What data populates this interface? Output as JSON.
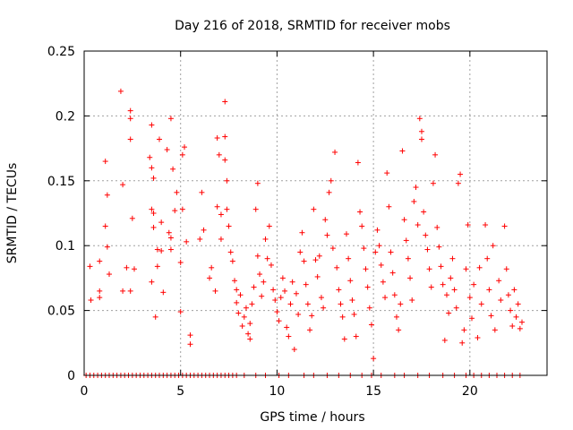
{
  "chart_data": {
    "type": "scatter",
    "title": "Day 216 of 2018, SRMTID for receiver mobs",
    "xlabel": "GPS time / hours",
    "ylabel": "SRMTID / TECUs",
    "xlim": [
      0,
      24
    ],
    "ylim": [
      0,
      0.25
    ],
    "xticks": [
      0,
      5,
      10,
      15,
      20
    ],
    "yticks": [
      0,
      0.05,
      0.1,
      0.15,
      0.2,
      0.25
    ],
    "xtick_labels": [
      "0",
      "5",
      "10",
      "15",
      "20"
    ],
    "ytick_labels": [
      "0",
      "0.05",
      "0.1",
      "0.15",
      "0.2",
      "0.25"
    ],
    "grid": true,
    "marker": "+",
    "series": [
      {
        "name": "SRMTID",
        "color": "#ff0000",
        "points": [
          [
            0.3,
            0.084
          ],
          [
            0.35,
            0.058
          ],
          [
            0.8,
            0.088
          ],
          [
            0.8,
            0.065
          ],
          [
            0.8,
            0.06
          ],
          [
            1.1,
            0.165
          ],
          [
            1.1,
            0.115
          ],
          [
            1.2,
            0.139
          ],
          [
            1.2,
            0.099
          ],
          [
            1.3,
            0.078
          ],
          [
            1.9,
            0.219
          ],
          [
            2.0,
            0.147
          ],
          [
            2.0,
            0.065
          ],
          [
            2.2,
            0.083
          ],
          [
            2.4,
            0.204
          ],
          [
            2.4,
            0.198
          ],
          [
            2.4,
            0.182
          ],
          [
            2.5,
            0.121
          ],
          [
            2.6,
            0.082
          ],
          [
            2.4,
            0.065
          ],
          [
            3.4,
            0.168
          ],
          [
            3.5,
            0.193
          ],
          [
            3.5,
            0.16
          ],
          [
            3.5,
            0.128
          ],
          [
            3.6,
            0.125
          ],
          [
            3.5,
            0.072
          ],
          [
            3.6,
            0.152
          ],
          [
            3.6,
            0.114
          ],
          [
            3.7,
            0.045
          ],
          [
            3.8,
            0.097
          ],
          [
            3.8,
            0.084
          ],
          [
            3.9,
            0.182
          ],
          [
            4.0,
            0.118
          ],
          [
            4.0,
            0.096
          ],
          [
            4.1,
            0.064
          ],
          [
            4.3,
            0.174
          ],
          [
            4.5,
            0.198
          ],
          [
            4.4,
            0.11
          ],
          [
            4.5,
            0.106
          ],
          [
            4.5,
            0.097
          ],
          [
            4.6,
            0.159
          ],
          [
            4.7,
            0.127
          ],
          [
            4.8,
            0.141
          ],
          [
            5.0,
            0.087
          ],
          [
            5.0,
            0.049
          ],
          [
            5.1,
            0.17
          ],
          [
            5.1,
            0.128
          ],
          [
            5.2,
            0.176
          ],
          [
            5.3,
            0.103
          ],
          [
            5.5,
            0.031
          ],
          [
            5.5,
            0.024
          ],
          [
            6.0,
            0.105
          ],
          [
            6.1,
            0.141
          ],
          [
            6.2,
            0.112
          ],
          [
            6.5,
            0.075
          ],
          [
            6.6,
            0.083
          ],
          [
            6.8,
            0.065
          ],
          [
            6.9,
            0.183
          ],
          [
            6.9,
            0.13
          ],
          [
            7.0,
            0.17
          ],
          [
            7.1,
            0.124
          ],
          [
            7.1,
            0.105
          ],
          [
            7.3,
            0.184
          ],
          [
            7.3,
            0.211
          ],
          [
            7.3,
            0.166
          ],
          [
            7.4,
            0.15
          ],
          [
            7.4,
            0.128
          ],
          [
            7.5,
            0.115
          ],
          [
            7.6,
            0.095
          ],
          [
            7.7,
            0.088
          ],
          [
            7.8,
            0.073
          ],
          [
            7.9,
            0.066
          ],
          [
            7.9,
            0.056
          ],
          [
            8.0,
            0.048
          ],
          [
            8.1,
            0.062
          ],
          [
            8.2,
            0.038
          ],
          [
            8.3,
            0.045
          ],
          [
            8.4,
            0.052
          ],
          [
            8.5,
            0.032
          ],
          [
            8.6,
            0.028
          ],
          [
            8.6,
            0.04
          ],
          [
            8.7,
            0.055
          ],
          [
            8.8,
            0.068
          ],
          [
            8.9,
            0.128
          ],
          [
            9.0,
            0.148
          ],
          [
            9.0,
            0.092
          ],
          [
            9.1,
            0.078
          ],
          [
            9.2,
            0.061
          ],
          [
            9.3,
            0.072
          ],
          [
            9.4,
            0.105
          ],
          [
            9.5,
            0.09
          ],
          [
            9.6,
            0.115
          ],
          [
            9.7,
            0.085
          ],
          [
            9.8,
            0.066
          ],
          [
            9.9,
            0.058
          ],
          [
            10.0,
            0.049
          ],
          [
            10.1,
            0.042
          ],
          [
            10.2,
            0.06
          ],
          [
            10.3,
            0.075
          ],
          [
            10.4,
            0.065
          ],
          [
            10.5,
            0.037
          ],
          [
            10.6,
            0.03
          ],
          [
            10.7,
            0.055
          ],
          [
            10.8,
            0.072
          ],
          [
            10.9,
            0.02
          ],
          [
            11.0,
            0.063
          ],
          [
            11.1,
            0.047
          ],
          [
            11.2,
            0.095
          ],
          [
            11.3,
            0.11
          ],
          [
            11.4,
            0.088
          ],
          [
            11.5,
            0.07
          ],
          [
            11.6,
            0.055
          ],
          [
            11.7,
            0.035
          ],
          [
            11.8,
            0.046
          ],
          [
            11.9,
            0.128
          ],
          [
            12.0,
            0.089
          ],
          [
            12.1,
            0.076
          ],
          [
            12.2,
            0.092
          ],
          [
            12.3,
            0.06
          ],
          [
            12.4,
            0.052
          ],
          [
            12.5,
            0.12
          ],
          [
            12.6,
            0.108
          ],
          [
            12.7,
            0.141
          ],
          [
            12.8,
            0.15
          ],
          [
            12.9,
            0.098
          ],
          [
            13.0,
            0.172
          ],
          [
            13.1,
            0.083
          ],
          [
            13.2,
            0.066
          ],
          [
            13.3,
            0.055
          ],
          [
            13.4,
            0.045
          ],
          [
            13.5,
            0.028
          ],
          [
            13.6,
            0.109
          ],
          [
            13.7,
            0.09
          ],
          [
            13.8,
            0.073
          ],
          [
            13.9,
            0.058
          ],
          [
            14.0,
            0.047
          ],
          [
            14.1,
            0.03
          ],
          [
            14.2,
            0.164
          ],
          [
            14.3,
            0.126
          ],
          [
            14.4,
            0.115
          ],
          [
            14.5,
            0.098
          ],
          [
            14.6,
            0.082
          ],
          [
            14.7,
            0.068
          ],
          [
            14.8,
            0.052
          ],
          [
            14.9,
            0.039
          ],
          [
            15.0,
            0.013
          ],
          [
            15.1,
            0.095
          ],
          [
            15.2,
            0.112
          ],
          [
            15.3,
            0.1
          ],
          [
            15.4,
            0.085
          ],
          [
            15.5,
            0.072
          ],
          [
            15.6,
            0.06
          ],
          [
            15.7,
            0.156
          ],
          [
            15.8,
            0.13
          ],
          [
            15.9,
            0.095
          ],
          [
            16.0,
            0.079
          ],
          [
            16.1,
            0.062
          ],
          [
            16.2,
            0.045
          ],
          [
            16.3,
            0.035
          ],
          [
            16.4,
            0.055
          ],
          [
            16.5,
            0.173
          ],
          [
            16.6,
            0.12
          ],
          [
            16.7,
            0.104
          ],
          [
            16.8,
            0.09
          ],
          [
            16.9,
            0.075
          ],
          [
            17.0,
            0.058
          ],
          [
            17.1,
            0.134
          ],
          [
            17.2,
            0.145
          ],
          [
            17.3,
            0.116
          ],
          [
            17.4,
            0.198
          ],
          [
            17.5,
            0.188
          ],
          [
            17.5,
            0.182
          ],
          [
            17.6,
            0.126
          ],
          [
            17.7,
            0.108
          ],
          [
            17.8,
            0.097
          ],
          [
            17.9,
            0.082
          ],
          [
            18.0,
            0.068
          ],
          [
            18.1,
            0.148
          ],
          [
            18.2,
            0.17
          ],
          [
            18.3,
            0.114
          ],
          [
            18.4,
            0.099
          ],
          [
            18.5,
            0.084
          ],
          [
            18.6,
            0.07
          ],
          [
            18.7,
            0.027
          ],
          [
            18.8,
            0.062
          ],
          [
            18.9,
            0.048
          ],
          [
            19.0,
            0.075
          ],
          [
            19.1,
            0.09
          ],
          [
            19.2,
            0.066
          ],
          [
            19.3,
            0.052
          ],
          [
            19.4,
            0.148
          ],
          [
            19.5,
            0.155
          ],
          [
            19.6,
            0.025
          ],
          [
            19.7,
            0.035
          ],
          [
            19.8,
            0.082
          ],
          [
            19.9,
            0.116
          ],
          [
            20.0,
            0.06
          ],
          [
            20.1,
            0.044
          ],
          [
            20.2,
            0.07
          ],
          [
            20.4,
            0.029
          ],
          [
            20.5,
            0.083
          ],
          [
            20.6,
            0.055
          ],
          [
            20.8,
            0.116
          ],
          [
            20.9,
            0.09
          ],
          [
            21.0,
            0.066
          ],
          [
            21.1,
            0.046
          ],
          [
            21.2,
            0.1
          ],
          [
            21.3,
            0.035
          ],
          [
            21.5,
            0.073
          ],
          [
            21.6,
            0.058
          ],
          [
            21.8,
            0.115
          ],
          [
            21.9,
            0.082
          ],
          [
            22.0,
            0.062
          ],
          [
            22.1,
            0.05
          ],
          [
            22.2,
            0.038
          ],
          [
            22.3,
            0.066
          ],
          [
            22.4,
            0.045
          ],
          [
            22.5,
            0.055
          ],
          [
            22.6,
            0.036
          ],
          [
            22.7,
            0.041
          ]
        ],
        "zero_x": [
          0.1,
          0.3,
          0.5,
          0.7,
          0.9,
          1.1,
          1.3,
          1.5,
          1.7,
          1.9,
          2.1,
          2.3,
          2.5,
          2.7,
          2.9,
          3.1,
          3.3,
          3.5,
          3.7,
          3.9,
          4.1,
          4.3,
          4.5,
          4.7,
          4.9,
          5.1,
          5.3,
          5.5,
          5.7,
          5.9,
          6.1,
          6.3,
          6.5,
          6.7,
          6.9,
          7.1,
          7.3,
          7.5,
          7.7,
          7.9,
          8.3,
          8.9,
          9.4,
          10.1,
          10.6,
          11.4,
          11.9,
          12.6,
          13.2,
          13.8,
          14.4,
          14.9,
          15.4,
          16.1,
          16.6,
          17.3,
          17.9,
          18.6,
          19.2,
          19.8,
          20.2,
          20.6,
          21.0,
          21.4,
          21.8,
          22.2,
          22.6
        ]
      }
    ]
  }
}
